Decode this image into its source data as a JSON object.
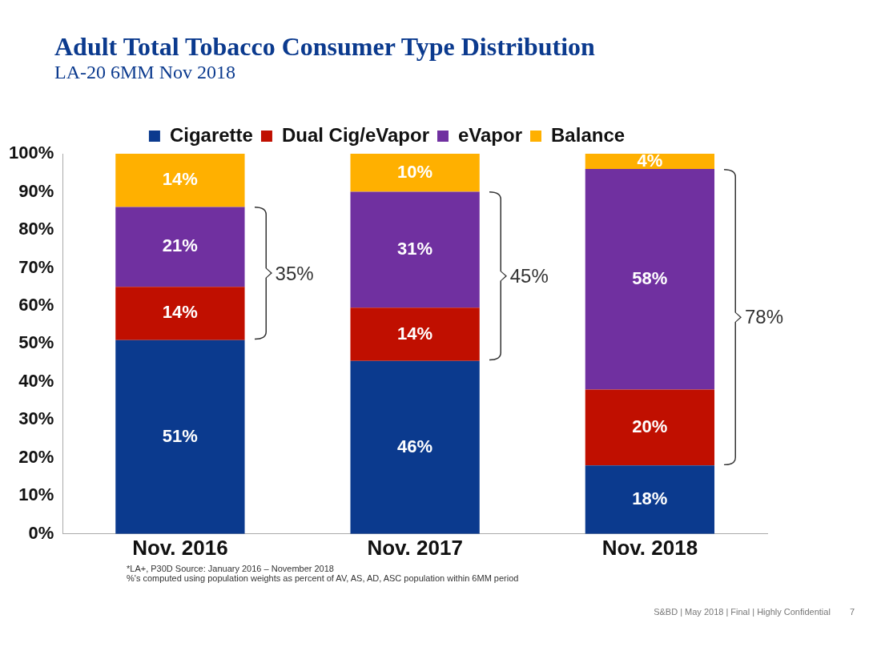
{
  "chart_data": {
    "type": "bar",
    "stacked": true,
    "title": "Adult Total Tobacco Consumer Type Distribution",
    "subtitle": "LA-20 6MM Nov 2018",
    "categories": [
      "Nov. 2016",
      "Nov. 2017",
      "Nov. 2018"
    ],
    "series": [
      {
        "name": "Cigarette",
        "color": "#0b3a8e",
        "values": [
          51,
          45.5,
          18
        ],
        "value_labels": [
          "51%",
          "46%",
          "18%"
        ]
      },
      {
        "name": "Dual Cig/eVapor",
        "color": "#c00f00",
        "values": [
          14,
          14,
          20
        ],
        "value_labels": [
          "14%",
          "14%",
          "20%"
        ]
      },
      {
        "name": "eVapor",
        "color": "#7030a0",
        "values": [
          21,
          30.5,
          58
        ],
        "value_labels": [
          "21%",
          "31%",
          "58%"
        ]
      },
      {
        "name": "Balance",
        "color": "#ffb000",
        "values": [
          14,
          10,
          4
        ],
        "value_labels": [
          "14%",
          "10%",
          "4%"
        ]
      }
    ],
    "ylim": [
      0,
      100
    ],
    "yticks": [
      {
        "value": 0,
        "label": "0%"
      },
      {
        "value": 10,
        "label": "10%"
      },
      {
        "value": 20,
        "label": "20%"
      },
      {
        "value": 30,
        "label": "30%"
      },
      {
        "value": 40,
        "label": "40%"
      },
      {
        "value": 50,
        "label": "50%"
      },
      {
        "value": 60,
        "label": "60%"
      },
      {
        "value": 70,
        "label": "70%"
      },
      {
        "value": 80,
        "label": "80%"
      },
      {
        "value": 90,
        "label": "90%"
      },
      {
        "value": 100,
        "label": "100%"
      }
    ],
    "grid": false,
    "legend": "top",
    "annotations": [
      "35%",
      "45%",
      "78%",
      "*LA+, P30D  Source: January 2016 – November 2018",
      "%'s computed using population weights as percent of AV, AS, AD, ASC population within 6MM period",
      "S&BD  |  May 2018  |  Final  |  Highly Confidential",
      "7"
    ]
  }
}
